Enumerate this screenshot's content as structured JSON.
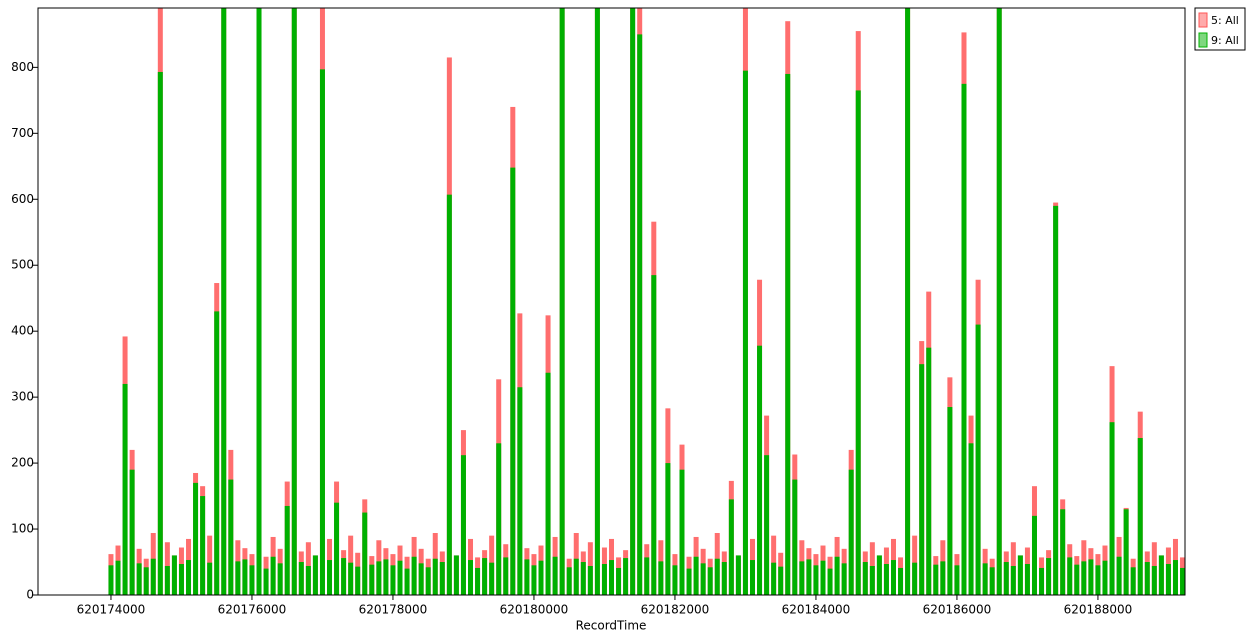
{
  "chart_data": {
    "type": "bar",
    "x_label": "RecordTime",
    "x": [
      620174000,
      620174100,
      620174200,
      620174300,
      620174400,
      620174500,
      620174600,
      620174700,
      620174800,
      620174900,
      620175000,
      620175100,
      620175200,
      620175300,
      620175400,
      620175500,
      620175600,
      620175700,
      620175800,
      620175900,
      620176000,
      620176100,
      620176200,
      620176300,
      620176400,
      620176500,
      620176600,
      620176700,
      620176800,
      620176900,
      620177000,
      620177100,
      620177200,
      620177300,
      620177400,
      620177500,
      620177600,
      620177700,
      620177800,
      620177900,
      620178000,
      620178100,
      620178200,
      620178300,
      620178400,
      620178500,
      620178600,
      620178700,
      620178800,
      620178900,
      620179000,
      620179100,
      620179200,
      620179300,
      620179400,
      620179500,
      620179600,
      620179700,
      620179800,
      620179900,
      620180000,
      620180100,
      620180200,
      620180300,
      620180400,
      620180500,
      620180600,
      620180700,
      620180800,
      620180900,
      620181000,
      620181100,
      620181200,
      620181300,
      620181400,
      620181500,
      620181600,
      620181700,
      620181800,
      620181900,
      620182000,
      620182100,
      620182200,
      620182300,
      620182400,
      620182500,
      620182600,
      620182700,
      620182800,
      620182900,
      620183000,
      620183100,
      620183200,
      620183300,
      620183400,
      620183500,
      620183600,
      620183700,
      620183800,
      620183900,
      620184000,
      620184100,
      620184200,
      620184300,
      620184400,
      620184500,
      620184600,
      620184700,
      620184800,
      620184900,
      620185000,
      620185100,
      620185200,
      620185300,
      620185400,
      620185500,
      620185600,
      620185700,
      620185800,
      620185900,
      620186000,
      620186100,
      620186200,
      620186300,
      620186400,
      620186500,
      620186600,
      620186700,
      620186800,
      620186900,
      620187000,
      620187100,
      620187200,
      620187300,
      620187400,
      620187500,
      620187600,
      620187700,
      620187800,
      620187900,
      620188000,
      620188100,
      620188200,
      620188300,
      620188400,
      620188500,
      620188600,
      620188700,
      620188800,
      620188900,
      620189000,
      620189100,
      620189200
    ],
    "series": [
      {
        "name": "5: All",
        "color": "#ff5555",
        "values": [
          62,
          75,
          392,
          220,
          70,
          55,
          94,
          890,
          80,
          60,
          72,
          85,
          185,
          165,
          90,
          473,
          890,
          220,
          83,
          71,
          62,
          890,
          58,
          88,
          70,
          172,
          890,
          66,
          80,
          60,
          890,
          85,
          172,
          68,
          90,
          64,
          145,
          59,
          83,
          71,
          62,
          75,
          58,
          88,
          70,
          55,
          94,
          66,
          815,
          60,
          250,
          85,
          57,
          68,
          90,
          327,
          77,
          740,
          427,
          71,
          62,
          75,
          424,
          88,
          890,
          55,
          94,
          66,
          80,
          890,
          72,
          85,
          57,
          68,
          890,
          890,
          77,
          566,
          83,
          283,
          62,
          228,
          58,
          88,
          70,
          55,
          94,
          66,
          173,
          60,
          890,
          85,
          478,
          272,
          90,
          64,
          870,
          213,
          83,
          71,
          62,
          75,
          58,
          88,
          70,
          220,
          855,
          66,
          80,
          60,
          72,
          85,
          57,
          890,
          90,
          385,
          460,
          59,
          83,
          330,
          62,
          853,
          272,
          478,
          70,
          55,
          890,
          66,
          80,
          60,
          72,
          165,
          57,
          68,
          595,
          145,
          77,
          59,
          83,
          71,
          62,
          75,
          347,
          88,
          132,
          55,
          278,
          66,
          80,
          60,
          72,
          85,
          57
        ]
      },
      {
        "name": "9: All",
        "color": "#00b000",
        "values": [
          45,
          52,
          320,
          190,
          48,
          42,
          55,
          793,
          44,
          60,
          47,
          53,
          170,
          150,
          49,
          430,
          890,
          175,
          51,
          54,
          45,
          890,
          40,
          58,
          48,
          135,
          890,
          50,
          44,
          60,
          797,
          53,
          140,
          56,
          49,
          43,
          125,
          46,
          51,
          54,
          45,
          52,
          40,
          58,
          48,
          42,
          55,
          50,
          607,
          60,
          212,
          53,
          41,
          56,
          49,
          230,
          57,
          648,
          315,
          54,
          45,
          52,
          337,
          58,
          890,
          42,
          55,
          50,
          44,
          890,
          47,
          53,
          41,
          56,
          890,
          850,
          57,
          485,
          51,
          200,
          45,
          190,
          40,
          58,
          48,
          42,
          55,
          50,
          145,
          60,
          795,
          53,
          378,
          212,
          49,
          43,
          790,
          175,
          51,
          54,
          45,
          52,
          40,
          58,
          48,
          190,
          765,
          50,
          44,
          60,
          47,
          53,
          41,
          890,
          49,
          350,
          375,
          46,
          51,
          285,
          45,
          775,
          230,
          410,
          48,
          42,
          890,
          50,
          44,
          60,
          47,
          120,
          41,
          56,
          590,
          130,
          57,
          46,
          51,
          54,
          45,
          52,
          262,
          58,
          130,
          42,
          238,
          50,
          44,
          60,
          47,
          53,
          41
        ]
      }
    ],
    "xlim": [
      620172965,
      620189235
    ],
    "xticks": [
      620174000,
      620176000,
      620178000,
      620180000,
      620182000,
      620184000,
      620186000,
      620188000
    ],
    "ylim": [
      0,
      890
    ],
    "yticks": [
      0,
      100,
      200,
      300,
      400,
      500,
      600,
      700,
      800
    ],
    "legend": "top-right"
  }
}
